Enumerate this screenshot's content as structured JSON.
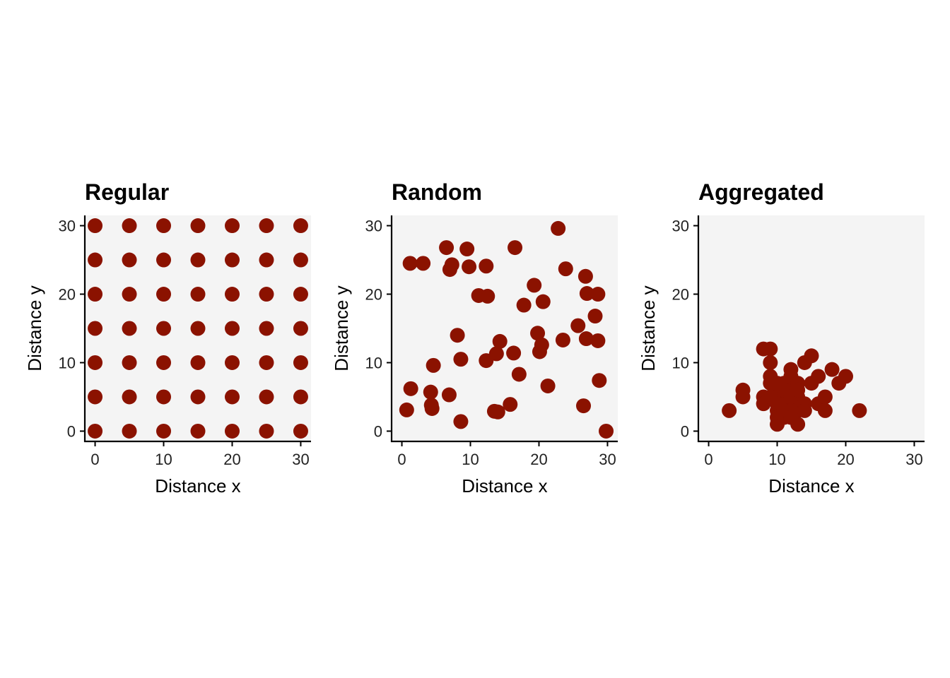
{
  "colors": {
    "panel_bg": "#f4f4f4",
    "point": "#8b1200",
    "axis": "#000000"
  },
  "chart_data": [
    {
      "type": "scatter",
      "title": "Regular",
      "xlabel": "Distance x",
      "ylabel": "Distance y",
      "xlim": [
        -1.5,
        31.5
      ],
      "ylim": [
        -1.5,
        31.5
      ],
      "xticks": [
        0,
        10,
        20,
        30
      ],
      "yticks": [
        0,
        10,
        20,
        30
      ],
      "points": [
        [
          0,
          0
        ],
        [
          5,
          0
        ],
        [
          10,
          0
        ],
        [
          15,
          0
        ],
        [
          20,
          0
        ],
        [
          25,
          0
        ],
        [
          30,
          0
        ],
        [
          0,
          5
        ],
        [
          5,
          5
        ],
        [
          10,
          5
        ],
        [
          15,
          5
        ],
        [
          20,
          5
        ],
        [
          25,
          5
        ],
        [
          30,
          5
        ],
        [
          0,
          10
        ],
        [
          5,
          10
        ],
        [
          10,
          10
        ],
        [
          15,
          10
        ],
        [
          20,
          10
        ],
        [
          25,
          10
        ],
        [
          30,
          10
        ],
        [
          0,
          15
        ],
        [
          5,
          15
        ],
        [
          10,
          15
        ],
        [
          15,
          15
        ],
        [
          20,
          15
        ],
        [
          25,
          15
        ],
        [
          30,
          15
        ],
        [
          0,
          20
        ],
        [
          5,
          20
        ],
        [
          10,
          20
        ],
        [
          15,
          20
        ],
        [
          20,
          20
        ],
        [
          25,
          20
        ],
        [
          30,
          20
        ],
        [
          0,
          25
        ],
        [
          5,
          25
        ],
        [
          10,
          25
        ],
        [
          15,
          25
        ],
        [
          20,
          25
        ],
        [
          25,
          25
        ],
        [
          30,
          25
        ],
        [
          0,
          30
        ],
        [
          5,
          30
        ],
        [
          10,
          30
        ],
        [
          15,
          30
        ],
        [
          20,
          30
        ],
        [
          25,
          30
        ],
        [
          30,
          30
        ]
      ]
    },
    {
      "type": "scatter",
      "title": "Random",
      "xlabel": "Distance x",
      "ylabel": "Distance y",
      "xlim": [
        -1.5,
        31.5
      ],
      "ylim": [
        -1.5,
        31.5
      ],
      "xticks": [
        0,
        10,
        20,
        30
      ],
      "yticks": [
        0,
        10,
        20,
        30
      ],
      "points": [
        [
          1.2,
          24.5
        ],
        [
          3.1,
          24.5
        ],
        [
          6.5,
          26.8
        ],
        [
          7.0,
          23.6
        ],
        [
          7.3,
          24.3
        ],
        [
          9.5,
          26.6
        ],
        [
          9.8,
          24.0
        ],
        [
          12.3,
          24.1
        ],
        [
          16.5,
          26.8
        ],
        [
          22.8,
          29.6
        ],
        [
          23.9,
          23.7
        ],
        [
          26.8,
          22.6
        ],
        [
          27.0,
          20.1
        ],
        [
          28.6,
          20.0
        ],
        [
          11.2,
          19.8
        ],
        [
          12.5,
          19.7
        ],
        [
          17.8,
          18.4
        ],
        [
          19.3,
          21.3
        ],
        [
          20.6,
          18.9
        ],
        [
          28.2,
          16.8
        ],
        [
          25.7,
          15.4
        ],
        [
          19.8,
          14.3
        ],
        [
          20.4,
          12.6
        ],
        [
          20.1,
          11.6
        ],
        [
          23.5,
          13.3
        ],
        [
          26.9,
          13.5
        ],
        [
          28.6,
          13.2
        ],
        [
          28.8,
          7.4
        ],
        [
          8.1,
          14.0
        ],
        [
          8.6,
          10.5
        ],
        [
          12.3,
          10.3
        ],
        [
          13.8,
          11.3
        ],
        [
          14.3,
          13.1
        ],
        [
          16.3,
          11.4
        ],
        [
          17.1,
          8.3
        ],
        [
          21.3,
          6.6
        ],
        [
          26.5,
          3.7
        ],
        [
          29.8,
          0.0
        ],
        [
          0.7,
          3.1
        ],
        [
          1.3,
          6.2
        ],
        [
          4.2,
          5.7
        ],
        [
          4.3,
          3.8
        ],
        [
          4.4,
          3.3
        ],
        [
          4.6,
          9.6
        ],
        [
          6.9,
          5.3
        ],
        [
          8.6,
          1.4
        ],
        [
          13.5,
          2.9
        ],
        [
          14.0,
          2.8
        ],
        [
          15.8,
          3.9
        ]
      ]
    },
    {
      "type": "scatter",
      "title": "Aggregated",
      "xlabel": "Distance x",
      "ylabel": "Distance y",
      "xlim": [
        -1.5,
        31.5
      ],
      "ylim": [
        -1.5,
        31.5
      ],
      "xticks": [
        0,
        10,
        20,
        30
      ],
      "yticks": [
        0,
        10,
        20,
        30
      ],
      "points": [
        [
          3,
          3
        ],
        [
          5,
          6
        ],
        [
          5,
          5
        ],
        [
          8,
          12
        ],
        [
          9,
          12
        ],
        [
          8,
          5
        ],
        [
          8,
          4
        ],
        [
          9,
          10
        ],
        [
          9,
          8
        ],
        [
          9,
          7
        ],
        [
          10,
          6
        ],
        [
          10,
          5
        ],
        [
          10,
          3
        ],
        [
          10,
          2
        ],
        [
          10,
          1
        ],
        [
          11,
          7
        ],
        [
          11,
          5
        ],
        [
          11,
          4
        ],
        [
          11,
          2
        ],
        [
          12,
          9
        ],
        [
          12,
          8
        ],
        [
          12,
          6
        ],
        [
          12,
          4
        ],
        [
          12,
          3
        ],
        [
          13,
          7
        ],
        [
          13,
          5
        ],
        [
          13,
          3
        ],
        [
          13,
          1
        ],
        [
          14,
          10
        ],
        [
          14,
          4
        ],
        [
          14,
          3
        ],
        [
          15,
          11
        ],
        [
          15,
          7
        ],
        [
          16,
          8
        ],
        [
          16,
          4
        ],
        [
          17,
          5
        ],
        [
          17,
          3
        ],
        [
          18,
          9
        ],
        [
          19,
          7
        ],
        [
          20,
          8
        ],
        [
          22,
          3
        ],
        [
          10,
          4
        ],
        [
          11,
          3
        ],
        [
          12,
          2
        ],
        [
          11,
          6
        ],
        [
          12,
          5
        ],
        [
          10,
          7
        ],
        [
          13,
          6
        ],
        [
          9,
          5
        ]
      ]
    }
  ]
}
